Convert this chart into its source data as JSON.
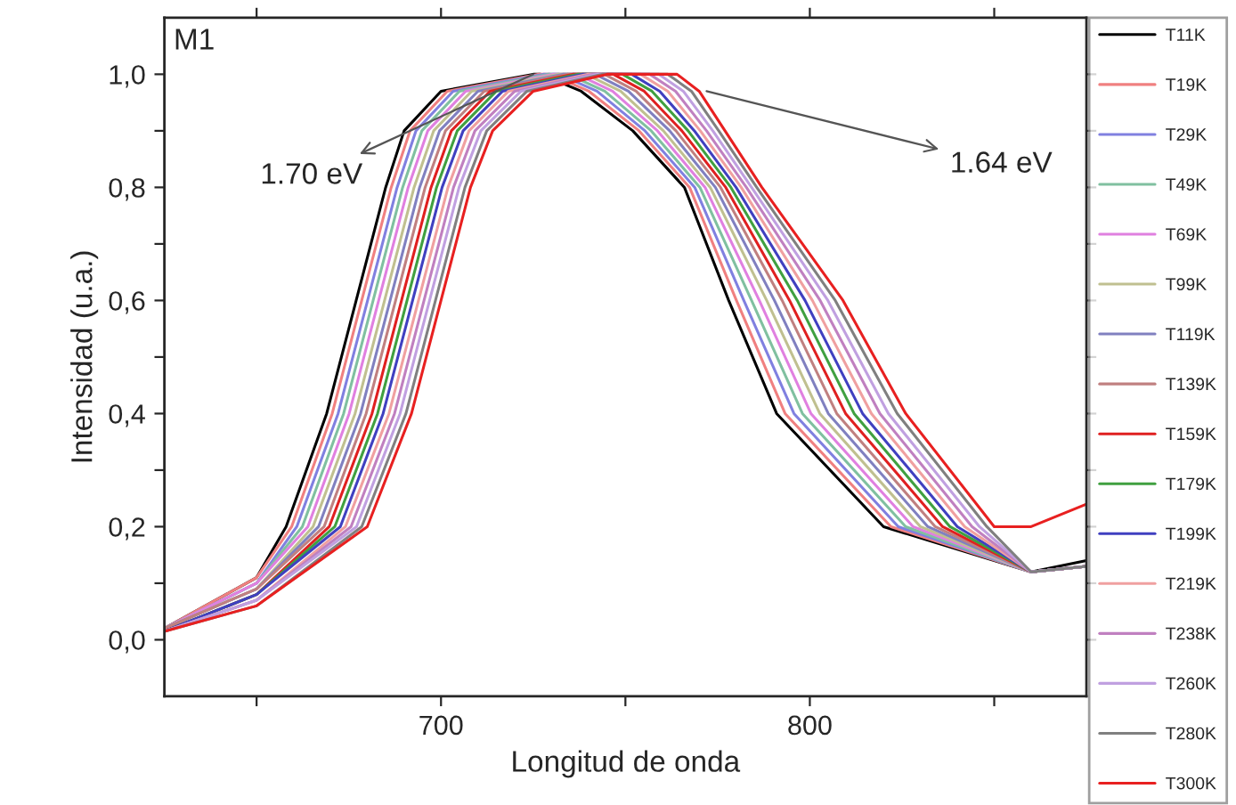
{
  "chart_data": {
    "type": "line",
    "xlabel": "Longitud de onda",
    "ylabel": "Intensidad (u.a.)",
    "xlim": [
      625,
      875
    ],
    "xticks": [
      {
        "value": 650,
        "label": null
      },
      700,
      {
        "value": 750,
        "label": null
      },
      800,
      {
        "value": 850,
        "label": null
      }
    ],
    "ylim": [
      -0.1,
      1.1
    ],
    "yticks": [
      {
        "value": 0,
        "label": "0,0"
      },
      {
        "value": 0.1,
        "label": null
      },
      {
        "value": 0.2,
        "label": "0,2"
      },
      {
        "value": 0.3,
        "label": null
      },
      {
        "value": 0.4,
        "label": "0,4"
      },
      {
        "value": 0.5,
        "label": null
      },
      {
        "value": 0.6,
        "label": "0,6"
      },
      {
        "value": 0.7,
        "label": null
      },
      {
        "value": 0.8,
        "label": "0,8"
      },
      {
        "value": 0.9,
        "label": null
      },
      {
        "value": 1.0,
        "label": "1,0"
      }
    ],
    "grid": false,
    "legend": "right",
    "marker": "none",
    "line_style": "solid",
    "annotations": [
      "M1",
      {
        "text": "1.70 eV",
        "x": 725,
        "y": 1.0
      },
      {
        "text": "1.64 eV",
        "x": 772,
        "y": 0.97
      }
    ],
    "series": [
      {
        "name": "T11K",
        "color": "#000000",
        "x": [
          625,
          650,
          658,
          669,
          677,
          685,
          690,
          700,
          725,
          727,
          738,
          752,
          766,
          778,
          791,
          820,
          860,
          875
        ],
        "values": [
          0.02,
          0.11,
          0.2,
          0.4,
          0.6,
          0.8,
          0.9,
          0.97,
          1.0,
          1.0,
          0.97,
          0.9,
          0.8,
          0.6,
          0.4,
          0.2,
          0.12,
          0.14
        ]
      },
      {
        "name": "T19K",
        "color": "#f08080",
        "x": [
          625,
          650,
          659.5,
          670.5,
          678.5,
          686.5,
          691.6,
          701.7,
          726.3,
          729.5,
          740.1,
          753.7,
          767.4,
          780.1,
          793.3,
          822,
          860,
          875
        ],
        "values": [
          0.02,
          0.11,
          0.2,
          0.4,
          0.6,
          0.8,
          0.9,
          0.97,
          1.0,
          1.0,
          0.97,
          0.9,
          0.8,
          0.6,
          0.4,
          0.2,
          0.12,
          0.13
        ]
      },
      {
        "name": "T29K",
        "color": "#8080e0",
        "x": [
          625,
          650,
          660.9,
          672.1,
          680.1,
          688.1,
          693.2,
          703.3,
          727.7,
          731.9,
          742.3,
          755.3,
          768.8,
          782.1,
          795.7,
          824,
          860,
          875
        ],
        "values": [
          0.02,
          0.1,
          0.2,
          0.4,
          0.6,
          0.8,
          0.9,
          0.97,
          1.0,
          1.0,
          0.97,
          0.9,
          0.8,
          0.6,
          0.4,
          0.2,
          0.12,
          0.13
        ]
      },
      {
        "name": "T49K",
        "color": "#80c0a0",
        "x": [
          625,
          650,
          662.4,
          673.6,
          681.6,
          689.6,
          694.8,
          705,
          729,
          734.4,
          744.4,
          757,
          770.2,
          784.2,
          798,
          826,
          860,
          875
        ],
        "values": [
          0.02,
          0.1,
          0.2,
          0.4,
          0.6,
          0.8,
          0.9,
          0.97,
          1.0,
          1.0,
          0.97,
          0.9,
          0.8,
          0.6,
          0.4,
          0.2,
          0.12,
          0.13
        ]
      },
      {
        "name": "T69K",
        "color": "#e080e0",
        "x": [
          625,
          650,
          663.9,
          675.1,
          683.1,
          691.1,
          696.4,
          706.7,
          730.3,
          736.9,
          746.5,
          758.7,
          771.6,
          786.3,
          800.3,
          828,
          860,
          875
        ],
        "values": [
          0.02,
          0.1,
          0.2,
          0.4,
          0.6,
          0.8,
          0.9,
          0.97,
          1.0,
          1.0,
          0.97,
          0.9,
          0.8,
          0.6,
          0.4,
          0.2,
          0.12,
          0.13
        ]
      },
      {
        "name": "T99K",
        "color": "#c0c090",
        "x": [
          625,
          650,
          665.3,
          676.7,
          684.7,
          692.7,
          698,
          708.3,
          731.7,
          739.3,
          748.7,
          760.3,
          773,
          788.3,
          802.7,
          830,
          860,
          875
        ],
        "values": [
          0.02,
          0.09,
          0.2,
          0.4,
          0.6,
          0.8,
          0.9,
          0.97,
          1.0,
          1.0,
          0.97,
          0.9,
          0.8,
          0.6,
          0.4,
          0.2,
          0.12,
          0.13
        ]
      },
      {
        "name": "T119K",
        "color": "#8080c0",
        "x": [
          625,
          650,
          666.8,
          678.2,
          686.2,
          694.2,
          699.6,
          710,
          733,
          741.8,
          750.8,
          762,
          774.4,
          790.4,
          805,
          832,
          860,
          875
        ],
        "values": [
          0.02,
          0.09,
          0.2,
          0.4,
          0.6,
          0.8,
          0.9,
          0.97,
          1.0,
          1.0,
          0.97,
          0.9,
          0.8,
          0.6,
          0.4,
          0.2,
          0.12,
          0.13
        ]
      },
      {
        "name": "T139K",
        "color": "#c08080",
        "x": [
          625,
          650,
          668.3,
          679.7,
          687.7,
          695.7,
          701.2,
          711.7,
          734.3,
          744.3,
          752.9,
          763.7,
          775.8,
          792.5,
          807.3,
          834,
          860,
          875
        ],
        "values": [
          0.02,
          0.09,
          0.2,
          0.4,
          0.6,
          0.8,
          0.9,
          0.97,
          1.0,
          1.0,
          0.97,
          0.9,
          0.8,
          0.6,
          0.4,
          0.2,
          0.12,
          0.13
        ]
      },
      {
        "name": "T159K",
        "color": "#e02020",
        "x": [
          625,
          650,
          669.7,
          681.3,
          689.3,
          697.3,
          702.8,
          713.3,
          735.7,
          746.7,
          755.1,
          765.3,
          777.2,
          794.5,
          809.7,
          836,
          860,
          875
        ],
        "values": [
          0.015,
          0.08,
          0.2,
          0.4,
          0.6,
          0.8,
          0.9,
          0.97,
          1.0,
          1.0,
          0.97,
          0.9,
          0.8,
          0.6,
          0.4,
          0.2,
          0.12,
          0.13
        ]
      },
      {
        "name": "T179K",
        "color": "#40a040",
        "x": [
          625,
          650,
          671.2,
          682.8,
          690.8,
          698.8,
          704.4,
          715,
          737,
          749.2,
          757.2,
          767,
          778.6,
          796.6,
          812,
          838,
          860,
          875
        ],
        "values": [
          0.015,
          0.08,
          0.2,
          0.4,
          0.6,
          0.8,
          0.9,
          0.97,
          1.0,
          1.0,
          0.97,
          0.9,
          0.8,
          0.6,
          0.4,
          0.2,
          0.12,
          0.13
        ]
      },
      {
        "name": "T199K",
        "color": "#4040c0",
        "x": [
          625,
          650,
          672.7,
          684.3,
          692.3,
          700.3,
          706,
          716.7,
          738.3,
          751.7,
          759.3,
          768.7,
          780,
          798.7,
          814.3,
          840,
          860,
          875
        ],
        "values": [
          0.015,
          0.08,
          0.2,
          0.4,
          0.6,
          0.8,
          0.9,
          0.97,
          1.0,
          1.0,
          0.97,
          0.9,
          0.8,
          0.6,
          0.4,
          0.2,
          0.12,
          0.13
        ]
      },
      {
        "name": "T219K",
        "color": "#f0a0a0",
        "x": [
          625,
          650,
          674.1,
          685.9,
          693.9,
          701.9,
          707.6,
          718.3,
          739.7,
          754.1,
          761.5,
          770.3,
          781.4,
          800.7,
          816.7,
          842,
          860,
          875
        ],
        "values": [
          0.015,
          0.07,
          0.2,
          0.4,
          0.6,
          0.8,
          0.9,
          0.97,
          1.0,
          1.0,
          0.97,
          0.9,
          0.8,
          0.6,
          0.4,
          0.2,
          0.12,
          0.13
        ]
      },
      {
        "name": "T238K",
        "color": "#c080c0",
        "x": [
          625,
          650,
          675.6,
          687.4,
          695.4,
          703.4,
          709.2,
          720,
          741,
          756.6,
          763.6,
          772,
          782.8,
          802.8,
          819,
          844,
          860,
          875
        ],
        "values": [
          0.015,
          0.07,
          0.2,
          0.4,
          0.6,
          0.8,
          0.9,
          0.97,
          1.0,
          1.0,
          0.97,
          0.9,
          0.8,
          0.6,
          0.4,
          0.2,
          0.12,
          0.13
        ]
      },
      {
        "name": "T260K",
        "color": "#c0a0e0",
        "x": [
          625,
          650,
          677.1,
          688.9,
          696.9,
          704.9,
          710.8,
          721.7,
          742.3,
          759.1,
          765.7,
          773.7,
          784.2,
          804.9,
          821.3,
          846,
          860,
          875
        ],
        "values": [
          0.015,
          0.07,
          0.2,
          0.4,
          0.6,
          0.8,
          0.9,
          0.97,
          1.0,
          1.0,
          0.97,
          0.9,
          0.8,
          0.6,
          0.4,
          0.2,
          0.12,
          0.13
        ]
      },
      {
        "name": "T280K",
        "color": "#808080",
        "x": [
          625,
          650,
          678.5,
          690.5,
          698.5,
          706.5,
          712.4,
          723.3,
          743.7,
          761.5,
          767.9,
          775.3,
          785.6,
          806.9,
          823.7,
          848,
          860,
          875
        ],
        "values": [
          0.015,
          0.06,
          0.2,
          0.4,
          0.6,
          0.8,
          0.9,
          0.97,
          1.0,
          1.0,
          0.97,
          0.9,
          0.8,
          0.6,
          0.4,
          0.2,
          0.12,
          0.13
        ]
      },
      {
        "name": "T300K",
        "color": "#e82020",
        "x": [
          625,
          650,
          680,
          692,
          700,
          708,
          714,
          725,
          745,
          764,
          770,
          777,
          787,
          809,
          826,
          850,
          860,
          875
        ],
        "values": [
          0.015,
          0.06,
          0.2,
          0.4,
          0.6,
          0.8,
          0.9,
          0.97,
          1.0,
          1.0,
          0.97,
          0.9,
          0.8,
          0.6,
          0.4,
          0.2,
          0.2,
          0.24
        ]
      }
    ]
  }
}
